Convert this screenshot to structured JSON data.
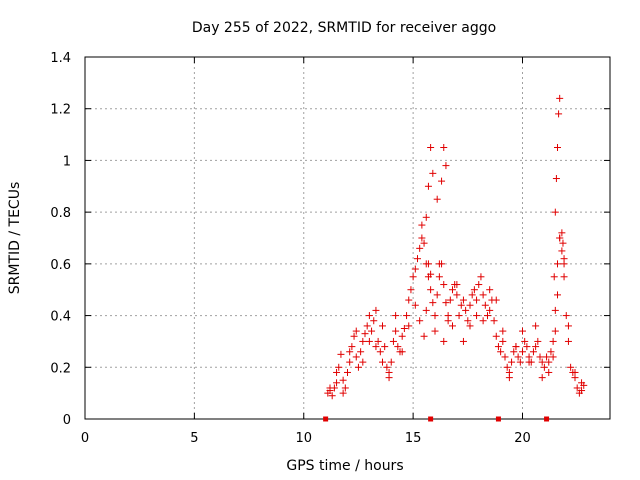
{
  "chart_data": {
    "type": "scatter",
    "title": "Day 255 of 2022, SRMTID for receiver aggo",
    "xlabel": "GPS time / hours",
    "ylabel": "SRMTID / TECUs",
    "xlim": [
      0,
      24
    ],
    "ylim": [
      0,
      1.4
    ],
    "xticks": [
      "0",
      "5",
      "10",
      "15",
      "20"
    ],
    "xtick_values": [
      0,
      5,
      10,
      15,
      20
    ],
    "yticks": [
      "0",
      "0.2",
      "0.4",
      "0.6",
      "0.8",
      "1",
      "1.2",
      "1.4"
    ],
    "ytick_values": [
      0,
      0.2,
      0.4,
      0.6,
      0.8,
      1.0,
      1.2,
      1.4
    ],
    "grid": true,
    "marker": "+",
    "color": "#e00000",
    "series": [
      {
        "name": "SRMTID",
        "x": [
          11.1,
          11.2,
          11.3,
          11.4,
          11.5,
          11.6,
          11.7,
          11.8,
          11.9,
          12.0,
          12.1,
          12.2,
          12.3,
          12.4,
          12.5,
          12.6,
          12.7,
          12.8,
          12.9,
          13.0,
          13.1,
          13.2,
          13.3,
          13.4,
          13.5,
          13.6,
          13.7,
          13.8,
          13.9,
          14.0,
          14.1,
          14.2,
          14.3,
          14.4,
          14.5,
          14.6,
          14.7,
          14.8,
          14.9,
          15.0,
          15.1,
          15.2,
          15.3,
          15.4,
          15.5,
          15.6,
          15.7,
          15.8,
          15.9,
          16.0,
          16.1,
          16.2,
          16.3,
          16.4,
          16.5,
          16.6,
          16.7,
          16.8,
          16.9,
          17.0,
          17.1,
          17.2,
          17.3,
          17.4,
          17.5,
          17.6,
          17.7,
          17.8,
          17.9,
          18.0,
          18.1,
          18.2,
          18.3,
          18.4,
          18.5,
          18.6,
          18.7,
          18.8,
          18.9,
          19.0,
          19.1,
          19.2,
          19.3,
          19.4,
          19.5,
          19.6,
          19.7,
          19.8,
          19.9,
          20.0,
          20.1,
          20.2,
          20.3,
          20.4,
          20.5,
          20.6,
          20.7,
          20.8,
          20.9,
          21.0,
          21.1,
          21.2,
          21.3,
          21.4,
          21.5,
          21.6,
          21.7,
          21.8,
          21.9,
          22.0,
          22.1,
          22.2,
          22.3,
          22.4,
          22.5,
          22.6,
          22.7,
          22.8,
          11.2,
          11.5,
          11.8,
          12.1,
          12.4,
          12.7,
          13.0,
          13.3,
          13.6,
          13.9,
          14.2,
          14.5,
          14.8,
          15.1,
          15.3,
          15.5,
          15.6,
          15.7,
          15.8,
          16.0,
          16.2,
          16.4,
          16.6,
          16.8,
          17.0,
          17.3,
          17.6,
          17.9,
          18.2,
          18.5,
          18.8,
          19.1,
          19.4,
          19.7,
          20.0,
          20.3,
          20.6,
          20.9,
          21.2,
          21.4,
          21.5,
          21.6,
          21.7,
          21.9,
          22.1,
          22.4,
          22.7,
          15.4,
          15.6,
          15.7,
          15.8,
          15.9,
          16.1,
          16.3,
          16.4,
          16.5,
          21.45,
          21.5,
          21.55,
          21.6,
          21.65,
          21.7,
          21.8,
          21.85,
          21.9,
          11.0,
          15.8,
          18.9,
          21.1
        ],
        "y": [
          0.1,
          0.11,
          0.09,
          0.12,
          0.14,
          0.2,
          0.25,
          0.15,
          0.12,
          0.18,
          0.22,
          0.28,
          0.32,
          0.24,
          0.2,
          0.26,
          0.3,
          0.33,
          0.36,
          0.3,
          0.34,
          0.38,
          0.42,
          0.3,
          0.26,
          0.22,
          0.28,
          0.2,
          0.16,
          0.22,
          0.3,
          0.34,
          0.28,
          0.26,
          0.32,
          0.35,
          0.4,
          0.46,
          0.5,
          0.55,
          0.58,
          0.62,
          0.66,
          0.7,
          0.68,
          0.6,
          0.55,
          0.5,
          0.45,
          0.4,
          0.48,
          0.55,
          0.6,
          0.52,
          0.45,
          0.4,
          0.46,
          0.5,
          0.52,
          0.48,
          0.4,
          0.44,
          0.46,
          0.42,
          0.38,
          0.44,
          0.48,
          0.5,
          0.46,
          0.52,
          0.55,
          0.48,
          0.44,
          0.4,
          0.42,
          0.46,
          0.38,
          0.32,
          0.28,
          0.26,
          0.3,
          0.24,
          0.2,
          0.18,
          0.22,
          0.26,
          0.28,
          0.24,
          0.22,
          0.26,
          0.3,
          0.28,
          0.24,
          0.22,
          0.26,
          0.28,
          0.3,
          0.24,
          0.22,
          0.2,
          0.24,
          0.22,
          0.26,
          0.3,
          0.42,
          0.6,
          0.7,
          0.65,
          0.55,
          0.4,
          0.3,
          0.2,
          0.18,
          0.16,
          0.12,
          0.1,
          0.11,
          0.13,
          0.12,
          0.18,
          0.1,
          0.26,
          0.34,
          0.22,
          0.4,
          0.28,
          0.36,
          0.18,
          0.4,
          0.26,
          0.36,
          0.44,
          0.38,
          0.32,
          0.42,
          0.6,
          0.56,
          0.34,
          0.6,
          0.3,
          0.38,
          0.36,
          0.52,
          0.3,
          0.36,
          0.4,
          0.38,
          0.5,
          0.46,
          0.34,
          0.16,
          0.28,
          0.34,
          0.22,
          0.36,
          0.16,
          0.18,
          0.24,
          0.34,
          0.48,
          0.7,
          0.6,
          0.36,
          0.18,
          0.14,
          0.75,
          0.78,
          0.9,
          1.05,
          0.95,
          0.85,
          0.92,
          1.05,
          0.98,
          0.55,
          0.8,
          0.93,
          1.05,
          1.18,
          1.24,
          0.72,
          0.68,
          0.62,
          0.0,
          0.0,
          0.0,
          0.0
        ]
      }
    ]
  }
}
